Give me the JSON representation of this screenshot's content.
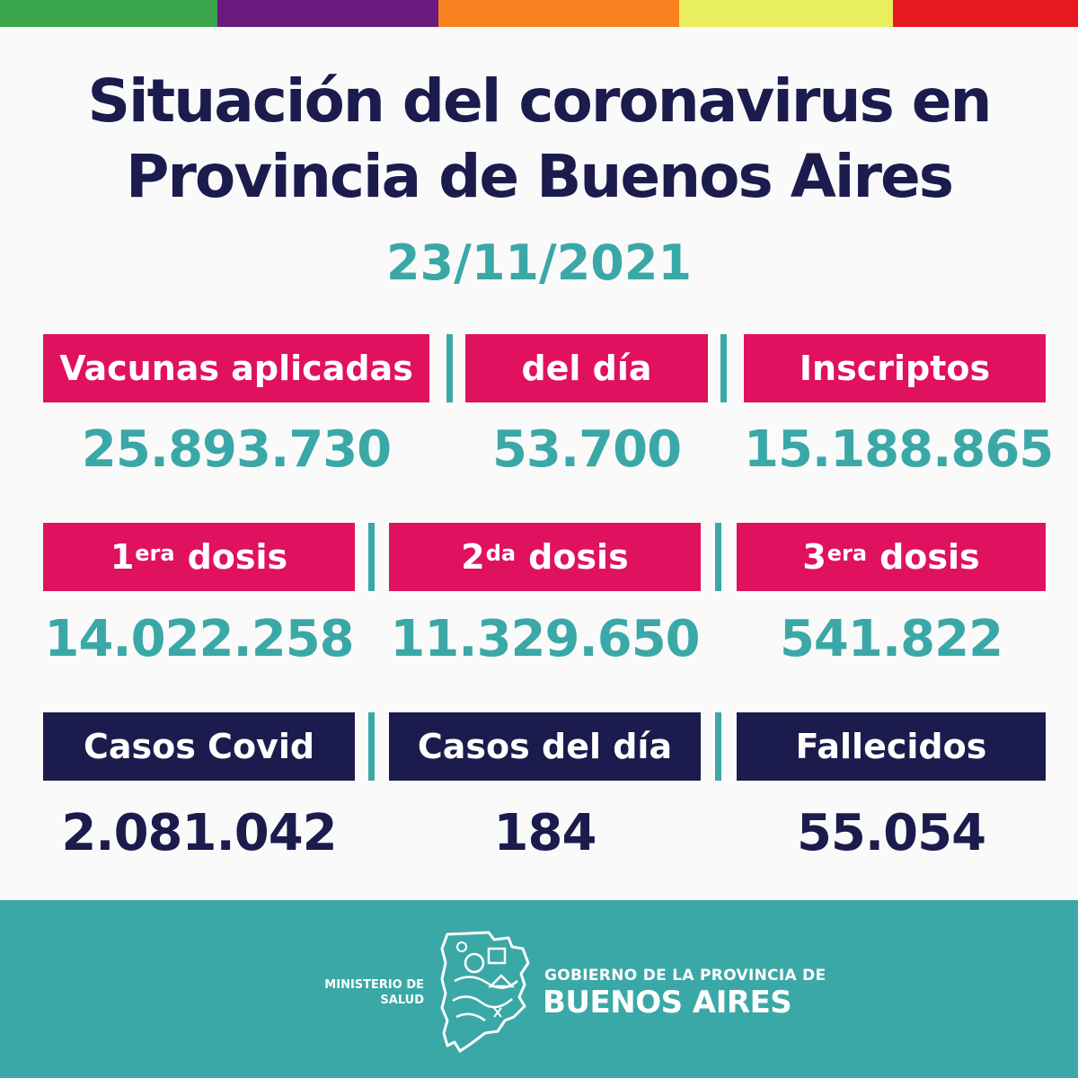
{
  "colors": {
    "stripes": [
      "#3aa54a",
      "#6a1a7e",
      "#f7811e",
      "#e9ee5c",
      "#e8191e"
    ],
    "navy": "#1c1b4d",
    "teal": "#3aa8a6",
    "pink": "#e0115f"
  },
  "title": {
    "line1": "Situación del coronavirus en",
    "line2": "Provincia de Buenos Aires"
  },
  "date": "23/11/2021",
  "row1": {
    "vacunas_label": "Vacunas aplicadas",
    "vacunas_value": "25.893.730",
    "deldia_label": "del día",
    "deldia_value": "53.700",
    "inscriptos_label": "Inscriptos",
    "inscriptos_value": "15.188.865"
  },
  "row2": {
    "d1_num": "1",
    "d1_sup": "era",
    "d1_word": "dosis",
    "d1_value": "14.022.258",
    "d2_num": "2",
    "d2_sup": "da",
    "d2_word": "dosis",
    "d2_value": "11.329.650",
    "d3_num": "3",
    "d3_sup": "era",
    "d3_word": "dosis",
    "d3_value": "541.822"
  },
  "row3": {
    "casos_label": "Casos Covid",
    "casos_value": "2.081.042",
    "casosdia_label": "Casos del día",
    "casosdia_value": "184",
    "fallecidos_label": "Fallecidos",
    "fallecidos_value": "55.054"
  },
  "footer": {
    "ministerio_line1": "MINISTERIO DE",
    "ministerio_line2": "SALUD",
    "gobierno_line1": "GOBIERNO DE LA PROVINCIA DE",
    "gobierno_line2": "BUENOS AIRES",
    "logo_icon": "buenos-aires-province-map-logo"
  }
}
